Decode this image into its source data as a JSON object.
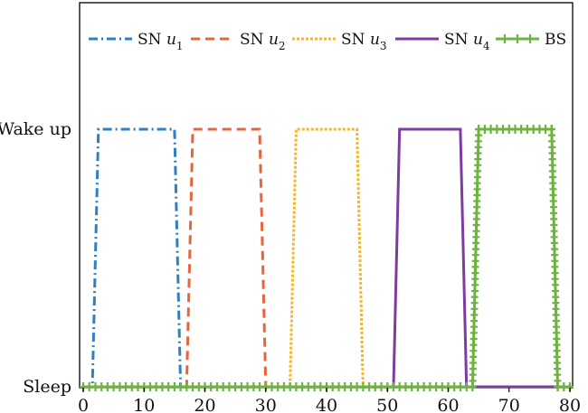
{
  "chart_data": {
    "type": "line",
    "title": "",
    "xlabel": "",
    "ylabel": "",
    "xlim": [
      0,
      80
    ],
    "y_states": [
      "Sleep",
      "Wake up"
    ],
    "ylim": [
      0,
      1
    ],
    "x_ticks": [
      0,
      10,
      20,
      30,
      40,
      50,
      60,
      70,
      80
    ],
    "y_ticks": [
      {
        "value": 1,
        "label": "Wake up"
      },
      {
        "value": 0,
        "label": "Sleep"
      }
    ],
    "grid": false,
    "legend_position": "top",
    "series": [
      {
        "name": "SN u1",
        "legend_base": "SN ",
        "legend_var": "u",
        "legend_sub": "1",
        "color": "#2e7fc4",
        "style": "dashdot",
        "points": [
          [
            0,
            0
          ],
          [
            1.5,
            0
          ],
          [
            2.5,
            1
          ],
          [
            15,
            1
          ],
          [
            16,
            0
          ],
          [
            80,
            0
          ]
        ]
      },
      {
        "name": "SN u2",
        "legend_base": "SN ",
        "legend_var": "u",
        "legend_sub": "2",
        "color": "#e8643c",
        "style": "dash",
        "points": [
          [
            0,
            0
          ],
          [
            17,
            0
          ],
          [
            18,
            1
          ],
          [
            29,
            1
          ],
          [
            30,
            0
          ],
          [
            80,
            0
          ]
        ]
      },
      {
        "name": "SN u3",
        "legend_base": "SN ",
        "legend_var": "u",
        "legend_sub": "3",
        "color": "#f7b528",
        "style": "dot",
        "points": [
          [
            0,
            0
          ],
          [
            34,
            0
          ],
          [
            35,
            1
          ],
          [
            45,
            1
          ],
          [
            46,
            0
          ],
          [
            80,
            0
          ]
        ]
      },
      {
        "name": "SN u4",
        "legend_base": "SN ",
        "legend_var": "u",
        "legend_sub": "4",
        "color": "#7e3c9e",
        "style": "solid",
        "points": [
          [
            0,
            0
          ],
          [
            51,
            0
          ],
          [
            52,
            1
          ],
          [
            62,
            1
          ],
          [
            63,
            0
          ],
          [
            80,
            0
          ]
        ]
      },
      {
        "name": "BS",
        "legend_base": "BS",
        "legend_var": "",
        "legend_sub": "",
        "color": "#6db33f",
        "style": "plus-markers",
        "points": [
          [
            0,
            0
          ],
          [
            64,
            0
          ],
          [
            65,
            1
          ],
          [
            77,
            1
          ],
          [
            78,
            0
          ],
          [
            80,
            0
          ]
        ]
      }
    ]
  }
}
